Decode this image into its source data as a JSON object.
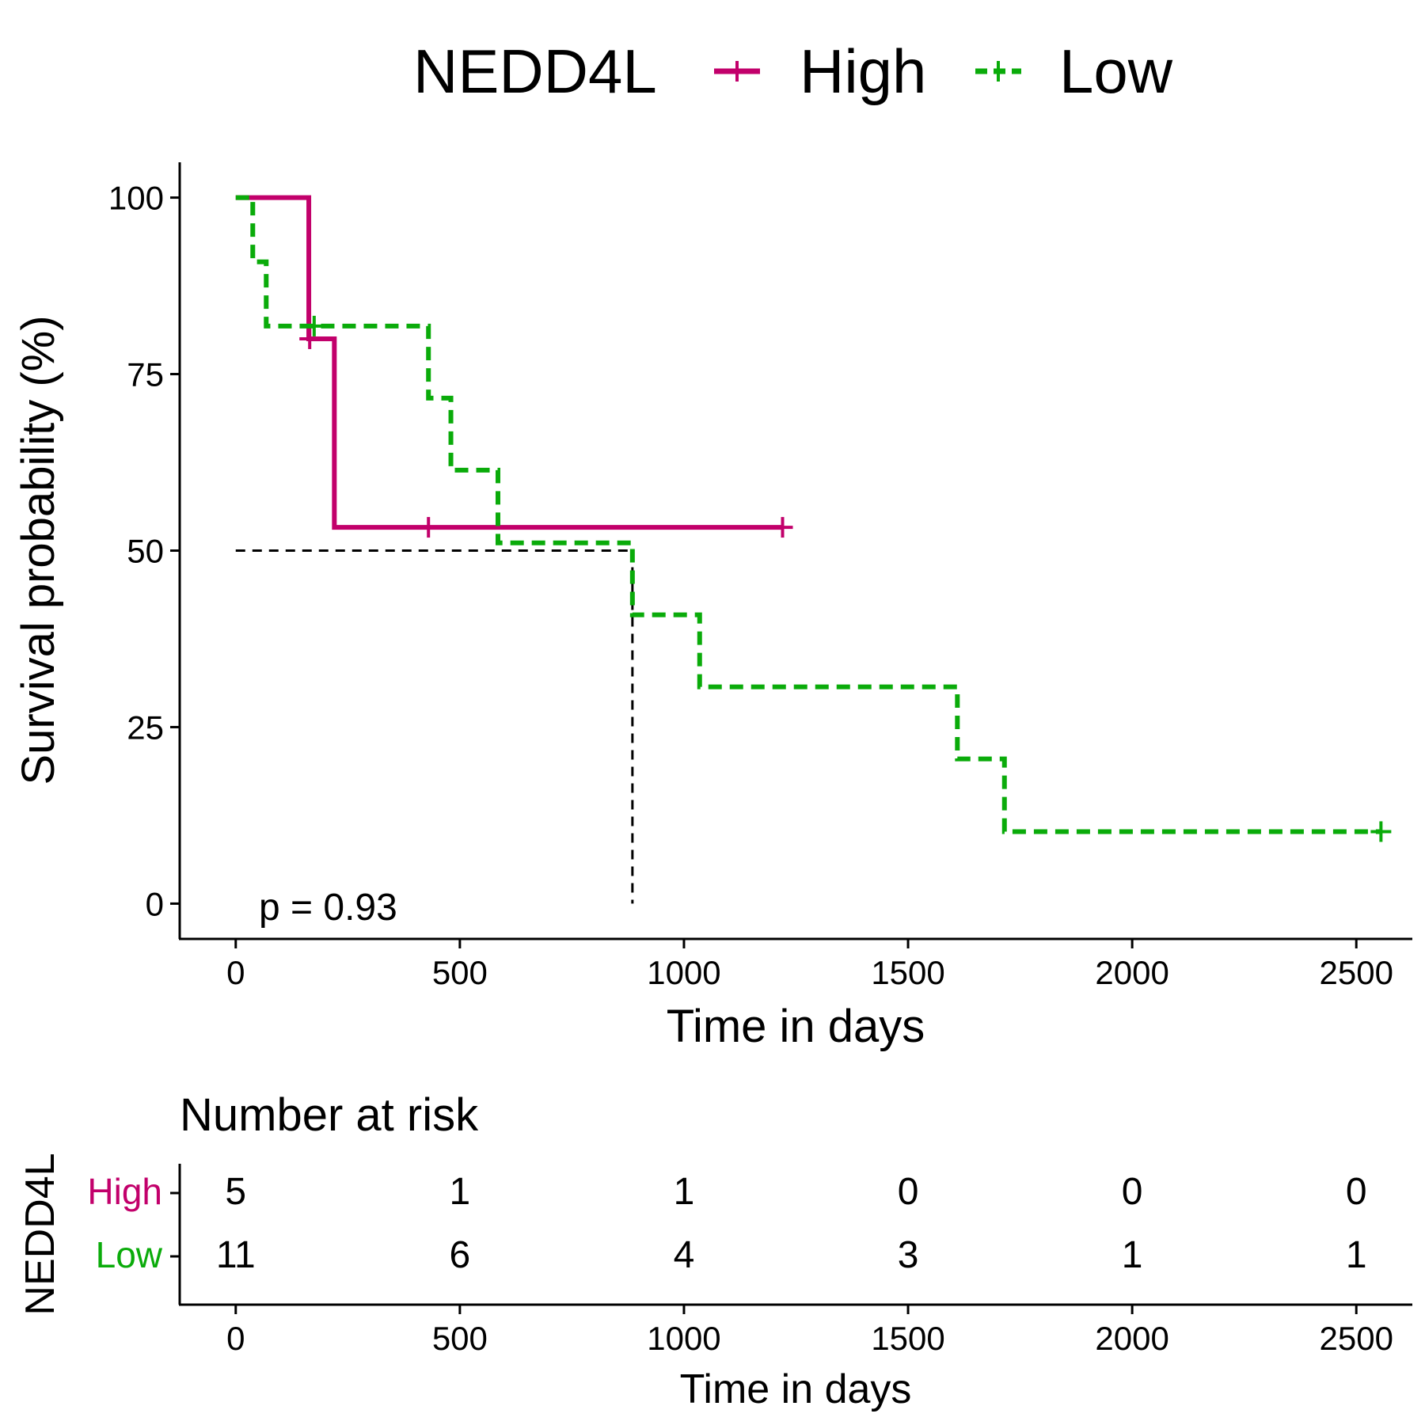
{
  "legend": {
    "title": "NEDD4L",
    "placement": "top",
    "items": [
      {
        "label": "High",
        "color": "#c2006b",
        "dash": "solid"
      },
      {
        "label": "Low",
        "color": "#0aab0a",
        "dash": "dashed"
      }
    ]
  },
  "chart_data": {
    "type": "line",
    "subtype": "kaplan-meier step",
    "xlabel": "Time in days",
    "ylabel": "Survival probability (%)",
    "xlim": [
      -125,
      2625
    ],
    "ylim": [
      -5,
      105
    ],
    "xticks": [
      0,
      500,
      1000,
      1500,
      2000,
      2500
    ],
    "yticks": [
      0,
      25,
      50,
      75,
      100
    ],
    "grid": false,
    "annotation": "p = 0.93",
    "median_reference": {
      "y": 50,
      "x": 885
    },
    "series": [
      {
        "name": "High",
        "color": "#c2006b",
        "dash": "solid",
        "x": [
          0,
          163,
          220,
          1220
        ],
        "y": [
          100,
          80,
          53.3,
          53.3
        ],
        "censored": [
          [
            165,
            80
          ],
          [
            430,
            53.3
          ],
          [
            1220,
            53.3
          ]
        ]
      },
      {
        "name": "Low",
        "color": "#0aab0a",
        "dash": "dashed",
        "x": [
          0,
          38,
          68,
          430,
          480,
          585,
          885,
          1035,
          1610,
          1715,
          2555
        ],
        "y": [
          100,
          90.9,
          81.8,
          71.6,
          61.4,
          51.1,
          40.9,
          30.7,
          20.5,
          10.2,
          10.2
        ],
        "censored": [
          [
            175,
            81.8
          ],
          [
            2555,
            10.2
          ]
        ]
      }
    ]
  },
  "risk_table": {
    "title": "Number at risk",
    "ylabel": "NEDD4L",
    "xlabel": "Time in days",
    "times": [
      0,
      500,
      1000,
      1500,
      2000,
      2500
    ],
    "rows": [
      {
        "label": "High",
        "color": "#c2006b",
        "counts": [
          "5",
          "1",
          "1",
          "0",
          "0",
          "0"
        ]
      },
      {
        "label": "Low",
        "color": "#0aab0a",
        "counts": [
          "11",
          "6",
          "4",
          "3",
          "1",
          "1"
        ]
      }
    ]
  }
}
